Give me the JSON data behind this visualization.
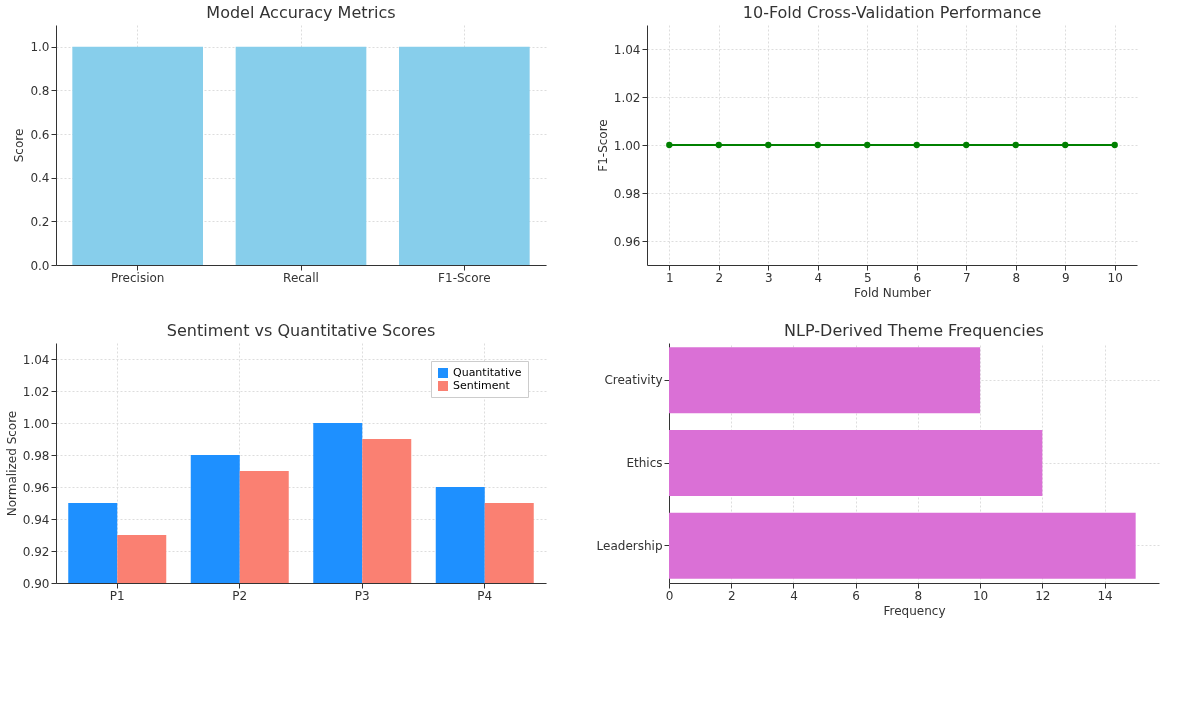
{
  "chart_data": [
    {
      "type": "bar",
      "title": "Model Accuracy Metrics",
      "ylabel": "Score",
      "categories": [
        "Precision",
        "Recall",
        "F1-Score"
      ],
      "values": [
        1.0,
        1.0,
        1.0
      ],
      "color": "#87ceeb",
      "ylim": [
        0,
        1.1
      ],
      "yticks": [
        {
          "value": 0,
          "label": "0.0"
        },
        0.2,
        0.4,
        0.6,
        0.8,
        {
          "value": 1,
          "label": "1.0"
        }
      ],
      "grid": true
    },
    {
      "type": "line",
      "title": "10-Fold Cross-Validation Performance",
      "xlabel": "Fold Number",
      "ylabel": "F1-Score",
      "x": [
        1,
        2,
        3,
        4,
        5,
        6,
        7,
        8,
        9,
        10
      ],
      "values": [
        1.0,
        1.0,
        1.0,
        1.0,
        1.0,
        1.0,
        1.0,
        1.0,
        1.0,
        1.0
      ],
      "color": "#008000",
      "marker": "circle",
      "xlim": [
        0.55,
        10.45
      ],
      "xticks": [
        1,
        2,
        3,
        4,
        5,
        6,
        7,
        8,
        9,
        10
      ],
      "ylim": [
        0.95,
        1.05
      ],
      "yticks": [
        0.96,
        0.98,
        {
          "value": 1,
          "label": "1.00"
        },
        1.02,
        1.04
      ],
      "grid": true
    },
    {
      "type": "bar",
      "title": "Sentiment vs Quantitative Scores",
      "ylabel": "Normalized Score",
      "categories": [
        "P1",
        "P2",
        "P3",
        "P4"
      ],
      "series": [
        {
          "name": "Quantitative",
          "color": "#1e90ff",
          "values": [
            0.95,
            0.98,
            1.0,
            0.96
          ]
        },
        {
          "name": "Sentiment",
          "color": "#fa8072",
          "values": [
            0.93,
            0.97,
            0.99,
            0.95
          ]
        }
      ],
      "ylim": [
        0.9,
        1.05
      ],
      "yticks": [
        {
          "value": 0.9,
          "label": "0.90"
        },
        0.92,
        0.94,
        0.96,
        0.98,
        {
          "value": 1,
          "label": "1.00"
        },
        1.02,
        1.04
      ],
      "grid": true,
      "legend": "top right"
    },
    {
      "type": "bar",
      "orientation": "horizontal",
      "title": "NLP-Derived Theme Frequencies",
      "xlabel": "Frequency",
      "categories": [
        "Creativity",
        "Ethics",
        "Leadership"
      ],
      "values": [
        10,
        12,
        15
      ],
      "color": "#da70d6",
      "xlim": [
        0,
        15.75
      ],
      "xticks": [
        0,
        2,
        4,
        6,
        8,
        10,
        12,
        14
      ],
      "grid": true
    }
  ]
}
